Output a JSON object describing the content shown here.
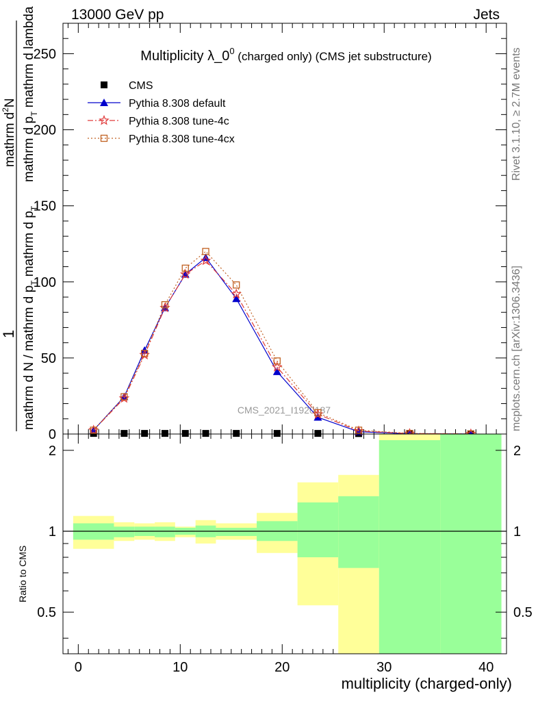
{
  "header": {
    "left": "13000 GeV pp",
    "right": "Jets"
  },
  "side_labels": {
    "rivet": "Rivet 3.1.10, ≥ 2.7M events",
    "mcplots": "mcplots.cern.ch [arXiv:1306.3436]"
  },
  "watermark": "CMS_2021_I1920187",
  "colors": {
    "cms": "#000000",
    "default": "#0000cc",
    "tune4c": "#e03a3a",
    "tune4cx": "#c06020",
    "band_inner": "#99ff99",
    "band_outer": "#ffff99"
  },
  "chart_data": [
    {
      "type": "line",
      "title_main": "Multiplicity λ_0",
      "title_sup": "0",
      "title_tail": " (charged only) (CMS jet substructure)",
      "ylabel_num": "1",
      "ylabel_den": "mathrm d N / mathrm d p_T mathrm d p_T mathrm d lambda",
      "ylabel_den_parts": {
        "base": "mathrm d N / mathrm d p",
        "sub": "T",
        "tail": "mathrm d N"
      },
      "ylabel_left_a": "mathrm d N / mathrm d p",
      "ylabel_left_a_sub": "T",
      "ylabel_left_b": "mathrm d p",
      "ylabel_left_b_sub": "T",
      "ylabel_left_c": "mathrm d lambda",
      "ylabel_top": "mathrm d",
      "ylabel_top_sup": "2",
      "ylabel_top_tail": "N",
      "xlim": [
        -1.5,
        42
      ],
      "ylim": [
        0,
        270
      ],
      "yticks": [
        0,
        50,
        100,
        150,
        200,
        250
      ],
      "legend_position": "top-left",
      "series": [
        {
          "name": "CMS",
          "marker": "square",
          "x": [
            1.5,
            4.5,
            6.5,
            8.5,
            10.5,
            12.5,
            15.5,
            19.5,
            23.5,
            27.5,
            32.5,
            38.5
          ],
          "y": [
            0.4,
            0.4,
            0.4,
            0.4,
            0.4,
            0.4,
            0.4,
            0.4,
            0.4,
            0.3,
            0.2,
            0.1
          ]
        },
        {
          "name": "Pythia 8.308 default",
          "marker": "triangle",
          "dash": "",
          "x": [
            1.5,
            4.5,
            6.5,
            8.5,
            10.5,
            12.5,
            15.5,
            19.5,
            23.5,
            27.5,
            32.5,
            38.5
          ],
          "y": [
            2.5,
            24.5,
            55,
            83,
            105,
            116,
            89,
            41,
            11,
            1.5,
            0.2,
            0.1
          ]
        },
        {
          "name": "Pythia 8.308 tune-4c",
          "marker": "star",
          "dash": "8,3,2,3",
          "x": [
            1.5,
            4.5,
            6.5,
            8.5,
            10.5,
            12.5,
            15.5,
            19.5,
            23.5,
            27.5,
            32.5,
            38.5
          ],
          "y": [
            2.5,
            23.5,
            52,
            83,
            105,
            114,
            92,
            44,
            13,
            2,
            0.3,
            0.1
          ]
        },
        {
          "name": "Pythia 8.308 tune-4cx",
          "marker": "open-square",
          "dash": "2,3",
          "x": [
            1.5,
            4.5,
            6.5,
            8.5,
            10.5,
            12.5,
            15.5,
            19.5,
            23.5,
            27.5,
            32.5,
            38.5
          ],
          "y": [
            2.5,
            24.5,
            53,
            85,
            109,
            120,
            98,
            48,
            14,
            2.5,
            0.4,
            0.1
          ]
        }
      ]
    },
    {
      "type": "area",
      "ylabel": "Ratio to CMS",
      "xlabel": "multiplicity (charged-only)",
      "xlim": [
        -1.5,
        42
      ],
      "ylim": [
        0.35,
        2.3
      ],
      "xticks": [
        0,
        10,
        20,
        30,
        40
      ],
      "yticks": [
        0.5,
        1,
        2
      ],
      "ytick_labels": [
        "0.5",
        "1",
        "2"
      ],
      "reference_line": 1,
      "bands": [
        {
          "x0": -0.5,
          "x1": 3.5,
          "inner": [
            0.93,
            1.07
          ],
          "outer": [
            0.86,
            1.14
          ]
        },
        {
          "x0": 3.5,
          "x1": 5.5,
          "inner": [
            0.95,
            1.04
          ],
          "outer": [
            0.92,
            1.08
          ]
        },
        {
          "x0": 5.5,
          "x1": 7.5,
          "inner": [
            0.96,
            1.04
          ],
          "outer": [
            0.93,
            1.07
          ]
        },
        {
          "x0": 7.5,
          "x1": 9.5,
          "inner": [
            0.95,
            1.04
          ],
          "outer": [
            0.92,
            1.08
          ]
        },
        {
          "x0": 9.5,
          "x1": 11.5,
          "inner": [
            0.97,
            1.03
          ],
          "outer": [
            0.95,
            1.04
          ]
        },
        {
          "x0": 11.5,
          "x1": 13.5,
          "inner": [
            0.95,
            1.05
          ],
          "outer": [
            0.9,
            1.1
          ]
        },
        {
          "x0": 13.5,
          "x1": 17.5,
          "inner": [
            0.96,
            1.03
          ],
          "outer": [
            0.93,
            1.07
          ]
        },
        {
          "x0": 17.5,
          "x1": 21.5,
          "inner": [
            0.92,
            1.09
          ],
          "outer": [
            0.83,
            1.17
          ]
        },
        {
          "x0": 21.5,
          "x1": 25.5,
          "inner": [
            0.8,
            1.28
          ],
          "outer": [
            0.53,
            1.52
          ]
        },
        {
          "x0": 25.5,
          "x1": 29.5,
          "inner": [
            0.73,
            1.35
          ],
          "outer": [
            0.3,
            1.62
          ]
        },
        {
          "x0": 29.5,
          "x1": 35.5,
          "inner": [
            0.3,
            2.3
          ],
          "outer": [
            0.3,
            2.3
          ],
          "outer_top_visible": true
        },
        {
          "x0": 35.5,
          "x1": 41.5,
          "inner": [
            0.3,
            2.3
          ],
          "outer": [
            0.3,
            2.3
          ]
        }
      ]
    }
  ]
}
